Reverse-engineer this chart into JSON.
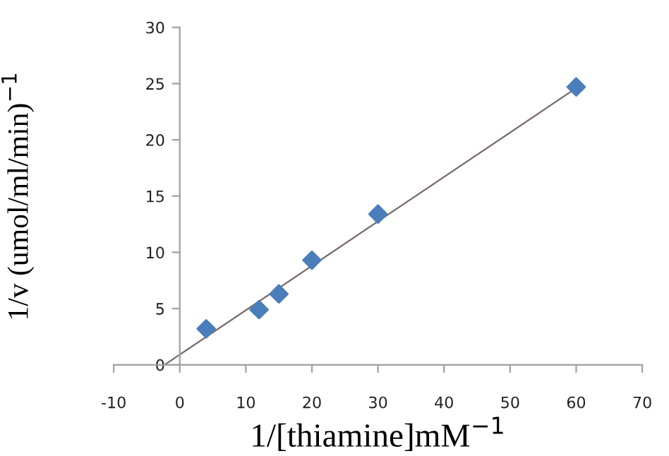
{
  "chart_data": {
    "type": "scatter",
    "xlabel": "1/[thiamine]mM$^{−1}$",
    "ylabel": "1/v (umol/ml/min)$^{−1}$",
    "xlim": [
      -10,
      70
    ],
    "ylim": [
      0,
      30
    ],
    "xticks": [
      -10,
      0,
      10,
      20,
      30,
      40,
      50,
      60,
      70
    ],
    "yticks": [
      0,
      5,
      10,
      15,
      20,
      25,
      30
    ],
    "grid": false,
    "legend": false,
    "series": [
      {
        "marker": "diamond",
        "color": "#4a7ebb",
        "x": [
          4,
          12,
          15,
          20,
          30,
          60
        ],
        "values": [
          3.2,
          4.9,
          6.3,
          9.3,
          13.4,
          24.7
        ]
      },
      {
        "type": "line",
        "marker": "none",
        "line_style": "solid",
        "color": "#7a6a6a",
        "x": [
          -2.3,
          60
        ],
        "values": [
          0,
          24.6
        ]
      }
    ]
  }
}
